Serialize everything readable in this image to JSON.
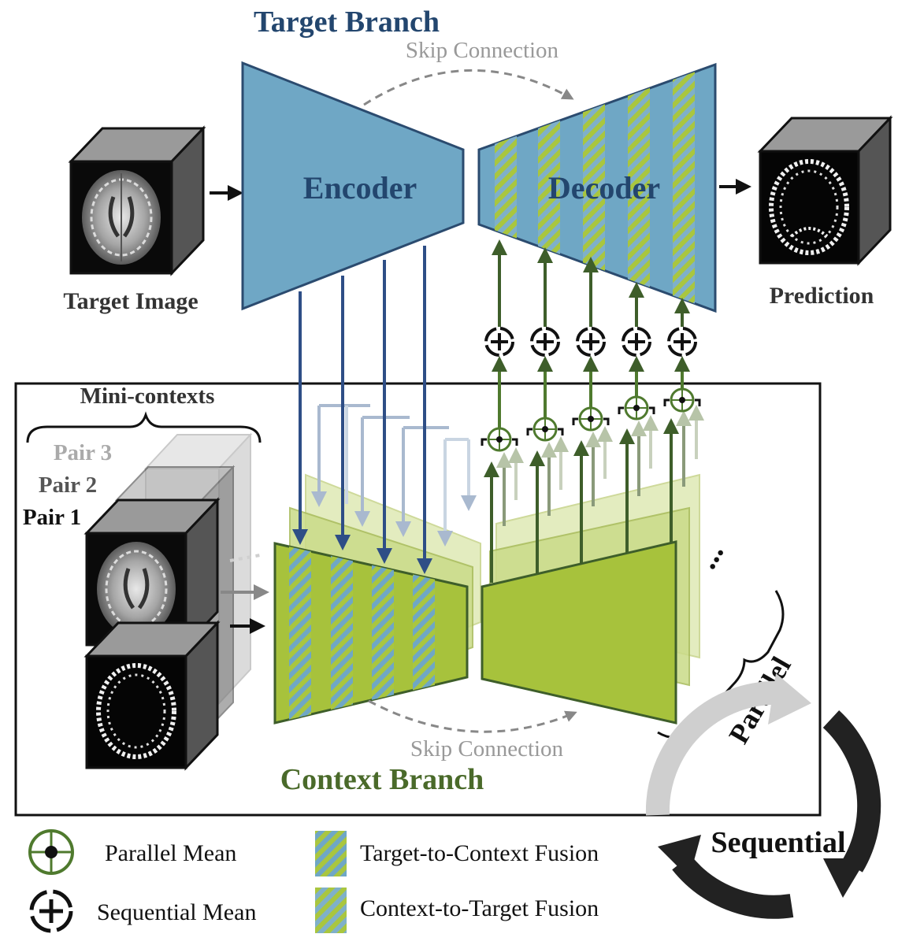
{
  "titles": {
    "target_branch": "Target Branch",
    "context_branch": "Context Branch",
    "mini_contexts": "Mini-contexts"
  },
  "target": {
    "encoder": "Encoder",
    "decoder": "Decoder",
    "skip_connection": "Skip Connection",
    "input_label": "Target Image",
    "output_label": "Prediction"
  },
  "context": {
    "skip_connection": "Skip Connection",
    "pairs": [
      "Pair 3",
      "Pair 2",
      "Pair 1"
    ],
    "ellipsis": "..."
  },
  "modes": {
    "parallel": "Parallel",
    "sequential": "Sequential"
  },
  "legend": {
    "parallel_mean": "Parallel Mean",
    "sequential_mean": "Sequential Mean",
    "target_to_context": "Target-to-Context Fusion",
    "context_to_target": "Context-to-Target Fusion"
  },
  "colors": {
    "target_blue": "#6fa7c5",
    "dark_blue_text": "#23466e",
    "context_green": "#a7c23c",
    "dark_green_text": "#4a6a2a",
    "arrow_blue": "#2e4e86",
    "arrow_green": "#3e5e2a"
  }
}
